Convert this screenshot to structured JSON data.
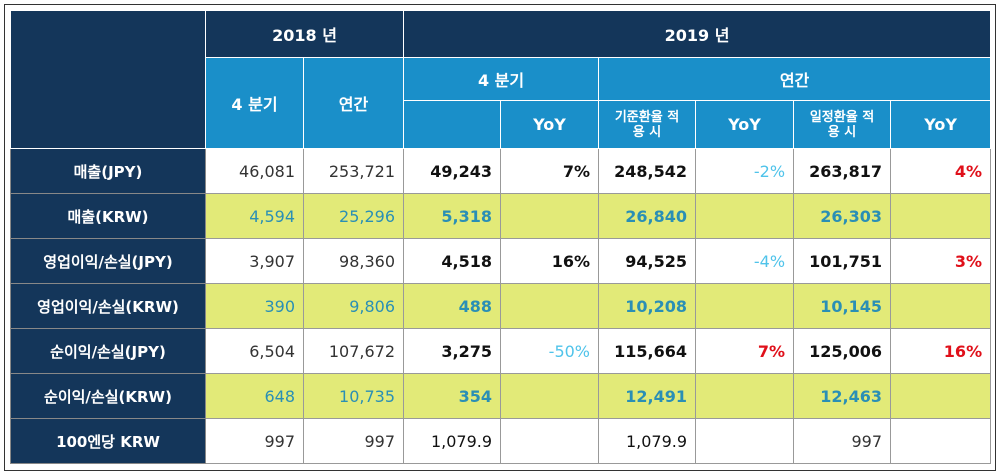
{
  "header": {
    "year_2018": "2018 년",
    "year_2019": "2019 년",
    "q4_2018": "4 분기",
    "annual_2018": "연간",
    "q4_2019": "4 분기",
    "annual_2019": "연간",
    "yoy_q4": "YoY",
    "base_rate": "기준환율 적용 시",
    "yoy_base": "YoY",
    "fixed_rate": "일정환율 적용 시",
    "yoy_fixed": "YoY"
  },
  "table": {
    "rows": [
      {
        "label": "매출(JPY)",
        "cells": [
          "46,081",
          "253,721",
          "49,243",
          "7%",
          "248,542",
          "-2%",
          "263,817",
          "4%"
        ]
      },
      {
        "label": "매출(KRW)",
        "cells": [
          "4,594",
          "25,296",
          "5,318",
          null,
          "26,840",
          null,
          "26,303",
          null
        ]
      },
      {
        "label": "영업이익/손실(JPY)",
        "cells": [
          "3,907",
          "98,360",
          "4,518",
          "16%",
          "94,525",
          "-4%",
          "101,751",
          "3%"
        ]
      },
      {
        "label": "영업이익/손실(KRW)",
        "cells": [
          "390",
          "9,806",
          "488",
          null,
          "10,208",
          null,
          "10,145",
          null
        ]
      },
      {
        "label": "순이익/손실(JPY)",
        "cells": [
          "6,504",
          "107,672",
          "3,275",
          "-50%",
          "115,664",
          "7%",
          "125,006",
          "16%"
        ]
      },
      {
        "label": "순이익/손실(KRW)",
        "cells": [
          "648",
          "10,735",
          "354",
          null,
          "12,491",
          null,
          "12,463",
          null
        ]
      },
      {
        "label": "100엔당 KRW",
        "cells": [
          "997",
          "997",
          "1,079.9",
          null,
          "1,079.9",
          null,
          "997",
          null
        ]
      }
    ]
  }
}
